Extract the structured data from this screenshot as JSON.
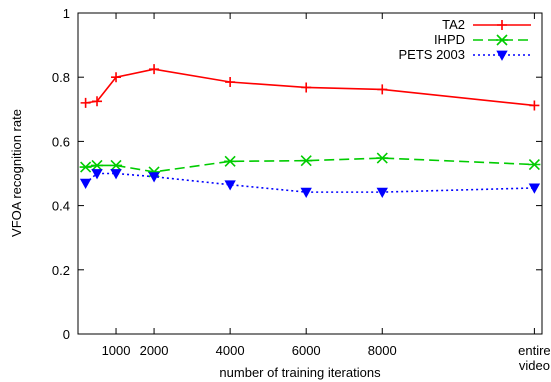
{
  "chart_data": {
    "type": "line",
    "xlabel": "number of training iterations",
    "ylabel": "VFOA recognition rate",
    "ylim": [
      0,
      1
    ],
    "yticks": [
      "0",
      "0.2",
      "0.4",
      "0.6",
      "0.8",
      "1"
    ],
    "xticks": [
      {
        "value": 1000,
        "label": "1000"
      },
      {
        "value": 2000,
        "label": "2000"
      },
      {
        "value": 4000,
        "label": "4000"
      },
      {
        "value": 6000,
        "label": "6000"
      },
      {
        "value": 8000,
        "label": "8000"
      },
      {
        "value": 12000,
        "label": [
          "entire",
          "video"
        ]
      }
    ],
    "legend_position": "top-right",
    "grid": false,
    "series": [
      {
        "name": "TA2",
        "color": "#ff0000",
        "dash": "solid",
        "marker": "plus",
        "x": [
          200,
          500,
          1000,
          2000,
          4000,
          6000,
          8000,
          12000
        ],
        "values": [
          0.72,
          0.725,
          0.8,
          0.825,
          0.785,
          0.768,
          0.762,
          0.712
        ]
      },
      {
        "name": "IHPD",
        "color": "#00cc00",
        "dash": "dashed",
        "marker": "cross",
        "x": [
          200,
          500,
          1000,
          2000,
          4000,
          6000,
          8000,
          12000
        ],
        "values": [
          0.52,
          0.525,
          0.525,
          0.505,
          0.538,
          0.54,
          0.548,
          0.528
        ]
      },
      {
        "name": "PETS 2003",
        "color": "#0000ff",
        "dash": "dotted",
        "marker": "triangle-down",
        "x": [
          200,
          500,
          1000,
          2000,
          4000,
          6000,
          8000,
          12000
        ],
        "values": [
          0.47,
          0.5,
          0.5,
          0.49,
          0.465,
          0.442,
          0.442,
          0.455
        ]
      }
    ]
  }
}
